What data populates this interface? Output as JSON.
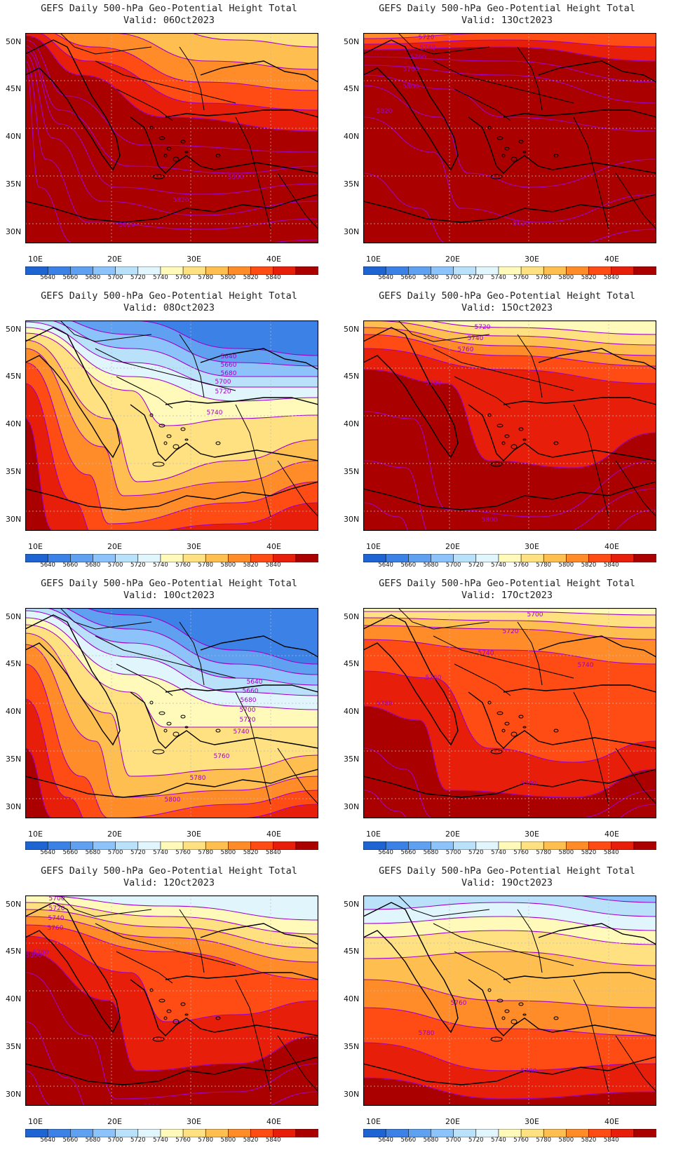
{
  "colorbar": {
    "levels": [
      "5640",
      "5660",
      "5680",
      "5700",
      "5720",
      "5740",
      "5760",
      "5780",
      "5800",
      "5820",
      "5840"
    ],
    "colors": [
      "#1e64d2",
      "#3c82e6",
      "#5fa0f0",
      "#8cc3fa",
      "#b9e1fa",
      "#e1f5fc",
      "#fffab9",
      "#ffe182",
      "#ffbe50",
      "#ff8c28",
      "#ff4b14",
      "#e61e0a",
      "#aa0000"
    ]
  },
  "axes": {
    "lat_labels": [
      "50N",
      "45N",
      "40N",
      "35N",
      "30N"
    ],
    "lon_labels": [
      "10E",
      "20E",
      "30E",
      "40E"
    ]
  },
  "panels": [
    {
      "title": "GEFS Daily 500-hPa Geo-Potential Height Total",
      "valid": "Valid: 06Oct2023",
      "contour_labels": [
        {
          "text": "5800"
        },
        {
          "text": "5820"
        },
        {
          "text": "5820"
        }
      ]
    },
    {
      "title": "GEFS Daily 500-hPa Geo-Potential Height Total",
      "valid": "Valid: 13Oct2023",
      "contour_labels": [
        {
          "text": "5720"
        },
        {
          "text": "5740"
        },
        {
          "text": "5760"
        },
        {
          "text": "5780"
        },
        {
          "text": "5800"
        },
        {
          "text": "5820"
        },
        {
          "text": "5820"
        }
      ]
    },
    {
      "title": "GEFS Daily 500-hPa Geo-Potential Height Total",
      "valid": "Valid: 08Oct2023",
      "contour_labels": [
        {
          "text": "5640"
        },
        {
          "text": "5660"
        },
        {
          "text": "5680"
        },
        {
          "text": "5700"
        },
        {
          "text": "5720"
        },
        {
          "text": "5740"
        }
      ]
    },
    {
      "title": "GEFS Daily 500-hPa Geo-Potential Height Total",
      "valid": "Valid: 15Oct2023",
      "contour_labels": [
        {
          "text": "5720"
        },
        {
          "text": "5740"
        },
        {
          "text": "5760"
        },
        {
          "text": "5780"
        },
        {
          "text": "5800"
        }
      ]
    },
    {
      "title": "GEFS Daily 500-hPa Geo-Potential Height Total",
      "valid": "Valid: 10Oct2023",
      "contour_labels": [
        {
          "text": "5640"
        },
        {
          "text": "5660"
        },
        {
          "text": "5680"
        },
        {
          "text": "5700"
        },
        {
          "text": "5720"
        },
        {
          "text": "5740"
        },
        {
          "text": "5760"
        },
        {
          "text": "5780"
        },
        {
          "text": "5800"
        }
      ]
    },
    {
      "title": "GEFS Daily 500-hPa Geo-Potential Height Total",
      "valid": "Valid: 17Oct2023",
      "contour_labels": [
        {
          "text": "5700"
        },
        {
          "text": "5720"
        },
        {
          "text": "5740"
        },
        {
          "text": "5740"
        },
        {
          "text": "5760"
        },
        {
          "text": "5780"
        },
        {
          "text": "5780"
        }
      ]
    },
    {
      "title": "GEFS Daily 500-hPa Geo-Potential Height Total",
      "valid": "Valid: 12Oct2023",
      "contour_labels": [
        {
          "text": "5700"
        },
        {
          "text": "5720"
        },
        {
          "text": "5740"
        },
        {
          "text": "5760"
        },
        {
          "text": "5780"
        },
        {
          "text": "5800"
        },
        {
          "text": "5820"
        }
      ]
    },
    {
      "title": "GEFS Daily 500-hPa Geo-Potential Height Total",
      "valid": "Valid: 19Oct2023",
      "contour_labels": [
        {
          "text": "5760"
        },
        {
          "text": "5780"
        },
        {
          "text": "5780"
        }
      ]
    }
  ]
}
